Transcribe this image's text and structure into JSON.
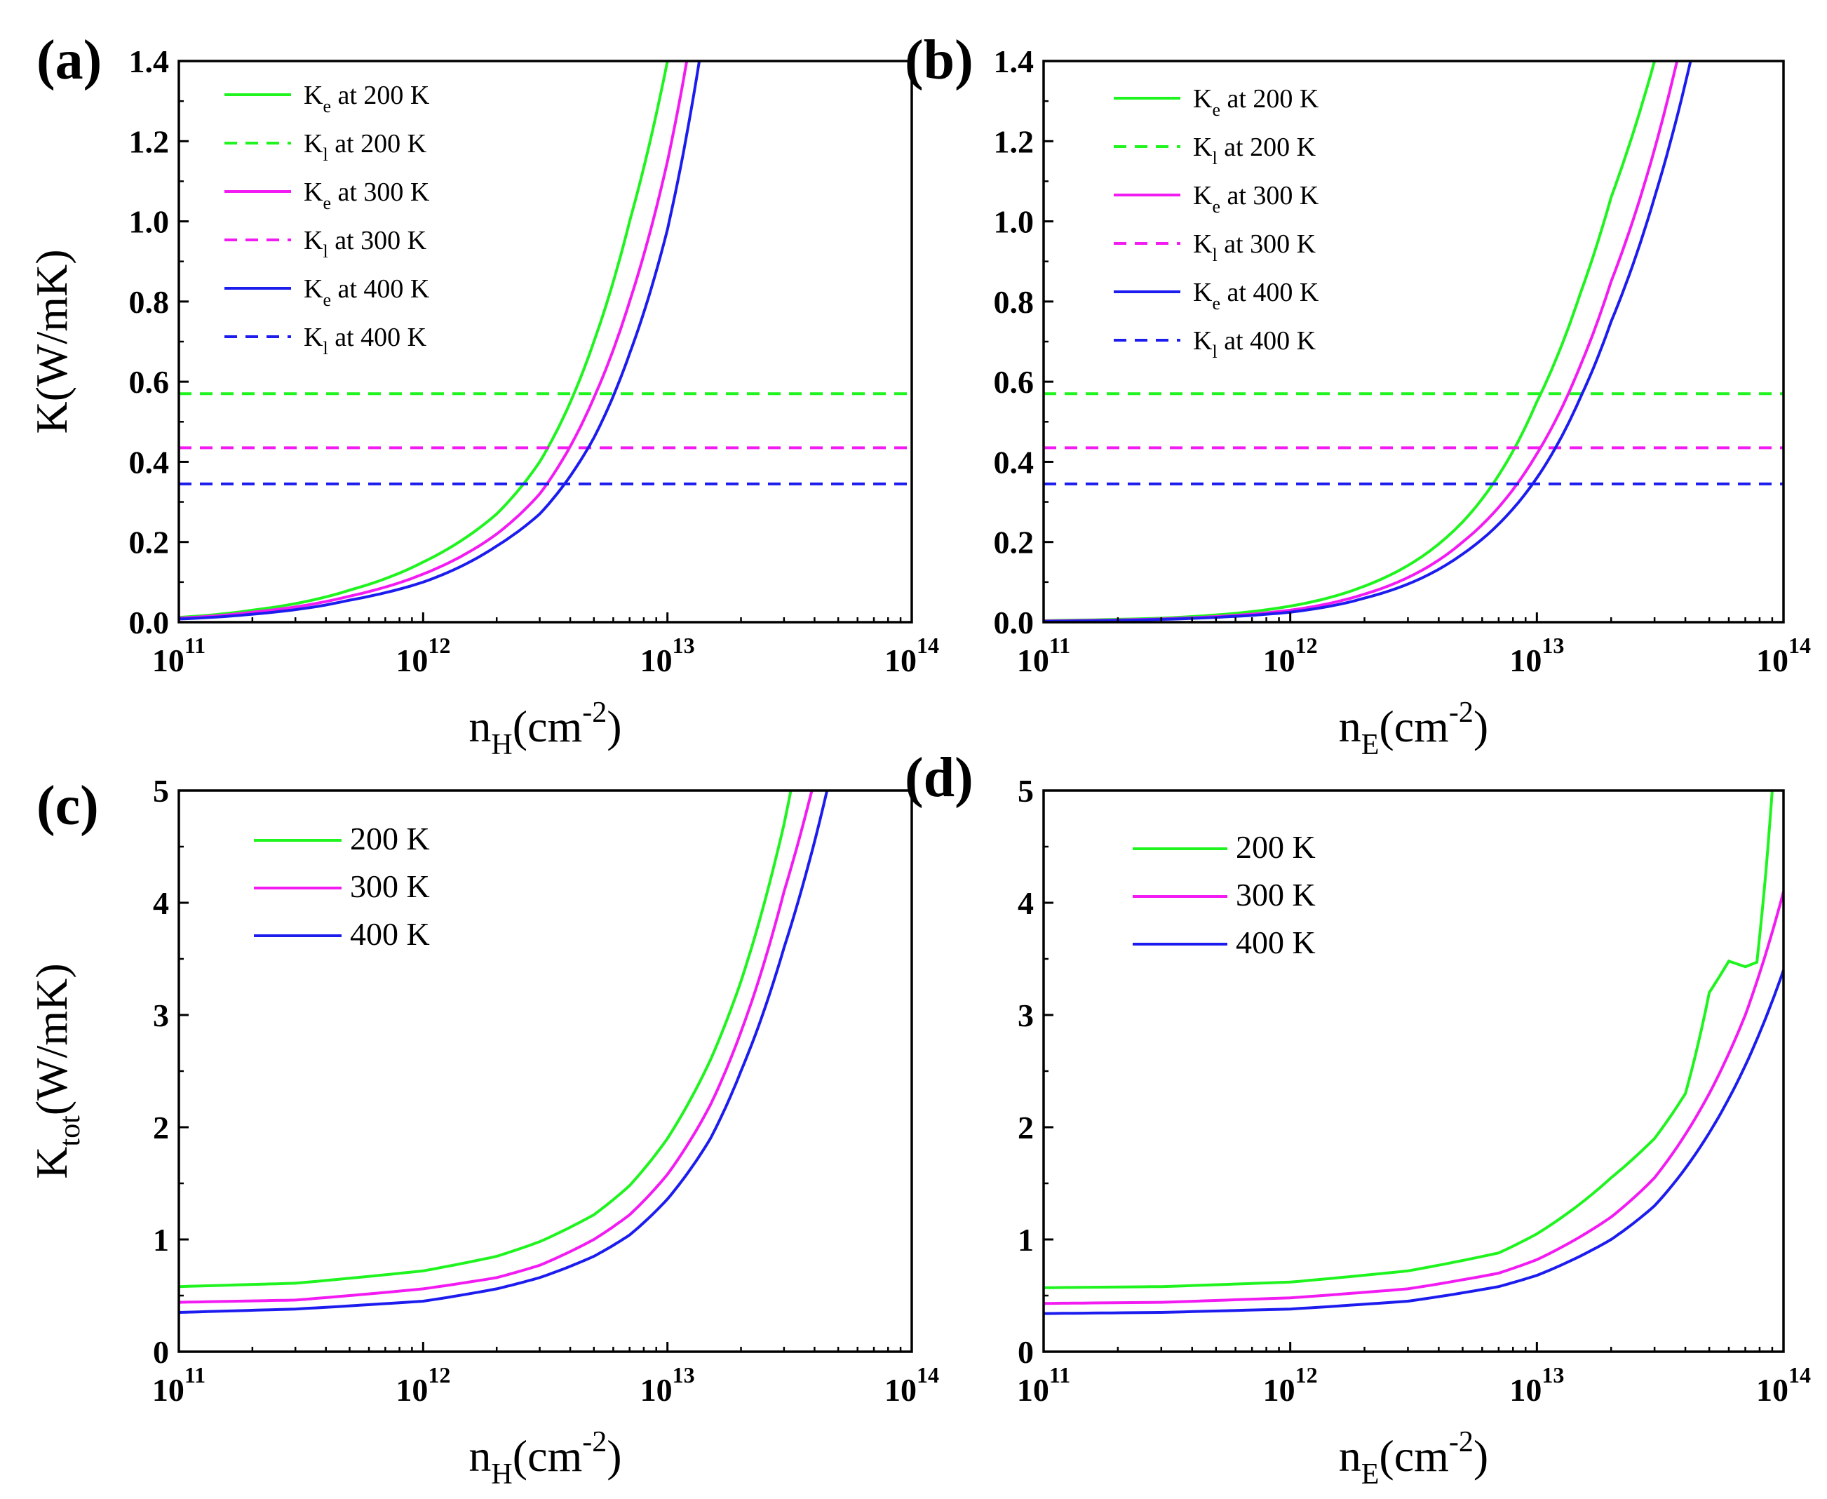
{
  "figure": {
    "panels": [
      "(a)",
      "(b)",
      "(c)",
      "(d)"
    ]
  },
  "colors": {
    "green": "#1ff41f",
    "magenta": "#f21bf2",
    "blue": "#1c1cef",
    "axis": "#000000"
  },
  "chart_data": [
    {
      "id": "a",
      "panel_label": "(a)",
      "type": "line",
      "xscale": "log",
      "xlim": [
        100000000000.0,
        100000000000000.0
      ],
      "ylim": [
        0,
        1.4
      ],
      "x_ticks": [
        {
          "base": "10",
          "exp": "11"
        },
        {
          "base": "10",
          "exp": "12"
        },
        {
          "base": "10",
          "exp": "13"
        },
        {
          "base": "10",
          "exp": "14"
        }
      ],
      "y_ticks": [
        "0.0",
        "0.2",
        "0.4",
        "0.6",
        "0.8",
        "1.0",
        "1.2",
        "1.4"
      ],
      "xlabel": {
        "main": "n",
        "sub": "H",
        "unit": "(cm",
        "sup": "-2",
        "close": ")"
      },
      "ylabel": {
        "main": "K",
        "sub": "",
        "unit": "(W/mK)"
      },
      "legend_position": "top-left",
      "series": [
        {
          "name": "Ke at 200 K",
          "label_main": "K",
          "label_sub": "e",
          "label_rest": " at 200 K",
          "color": "green",
          "dash": false,
          "x": [
            100000000000.0,
            200000000000.0,
            500000000000.0,
            1000000000000.0,
            2000000000000.0,
            3000000000000.0,
            5000000000000.0,
            7000000000000.0,
            10000000000000.0
          ],
          "y": [
            0.012,
            0.03,
            0.08,
            0.15,
            0.27,
            0.4,
            0.7,
            1.0,
            1.4
          ]
        },
        {
          "name": "Kl at 200 K",
          "label_main": "K",
          "label_sub": "l",
          "label_rest": " at 200 K",
          "color": "green",
          "dash": true,
          "x": [
            100000000000.0,
            100000000000000.0
          ],
          "y": [
            0.57,
            0.57
          ]
        },
        {
          "name": "Ke at 300 K",
          "label_main": "K",
          "label_sub": "e",
          "label_rest": " at 300 K",
          "color": "magenta",
          "dash": false,
          "x": [
            100000000000.0,
            200000000000.0,
            500000000000.0,
            1000000000000.0,
            2000000000000.0,
            3000000000000.0,
            5000000000000.0,
            7000000000000.0,
            10000000000000.0,
            12000000000000.0
          ],
          "y": [
            0.01,
            0.025,
            0.065,
            0.12,
            0.22,
            0.32,
            0.56,
            0.8,
            1.15,
            1.4
          ]
        },
        {
          "name": "Kl at 300 K",
          "label_main": "K",
          "label_sub": "l",
          "label_rest": " at 300 K",
          "color": "magenta",
          "dash": true,
          "x": [
            100000000000.0,
            100000000000000.0
          ],
          "y": [
            0.435,
            0.435
          ]
        },
        {
          "name": "Ke at 400 K",
          "label_main": "K",
          "label_sub": "e",
          "label_rest": " at 400 K",
          "color": "blue",
          "dash": false,
          "x": [
            100000000000.0,
            200000000000.0,
            500000000000.0,
            1000000000000.0,
            2000000000000.0,
            3000000000000.0,
            5000000000000.0,
            7000000000000.0,
            10000000000000.0,
            13500000000000.0
          ],
          "y": [
            0.008,
            0.02,
            0.055,
            0.1,
            0.19,
            0.27,
            0.46,
            0.67,
            0.98,
            1.4
          ]
        },
        {
          "name": "Kl at 400 K",
          "label_main": "K",
          "label_sub": "l",
          "label_rest": " at 400 K",
          "color": "blue",
          "dash": true,
          "x": [
            100000000000.0,
            100000000000000.0
          ],
          "y": [
            0.345,
            0.345
          ]
        }
      ]
    },
    {
      "id": "b",
      "panel_label": "(b)",
      "type": "line",
      "xscale": "log",
      "xlim": [
        100000000000.0,
        100000000000000.0
      ],
      "ylim": [
        0,
        1.4
      ],
      "x_ticks": [
        {
          "base": "10",
          "exp": "11"
        },
        {
          "base": "10",
          "exp": "12"
        },
        {
          "base": "10",
          "exp": "13"
        },
        {
          "base": "10",
          "exp": "14"
        }
      ],
      "y_ticks": [
        "0.0",
        "0.2",
        "0.4",
        "0.6",
        "0.8",
        "1.0",
        "1.2",
        "1.4"
      ],
      "xlabel": {
        "main": "n",
        "sub": "E",
        "unit": "(cm",
        "sup": "-2",
        "close": ")"
      },
      "ylabel": null,
      "legend_position": "top-left",
      "series": [
        {
          "name": "Ke at 200 K",
          "label_main": "K",
          "label_sub": "e",
          "label_rest": " at 200 K",
          "color": "green",
          "dash": false,
          "x": [
            100000000000.0,
            300000000000.0,
            1000000000000.0,
            2000000000000.0,
            5000000000000.0,
            10000000000000.0,
            15000000000000.0,
            20000000000000.0,
            30000000000000.0
          ],
          "y": [
            0.004,
            0.01,
            0.04,
            0.09,
            0.25,
            0.55,
            0.82,
            1.06,
            1.4
          ]
        },
        {
          "name": "Kl at 200 K",
          "label_main": "K",
          "label_sub": "l",
          "label_rest": " at 200 K",
          "color": "green",
          "dash": true,
          "x": [
            100000000000.0,
            100000000000000.0
          ],
          "y": [
            0.57,
            0.57
          ]
        },
        {
          "name": "Ke at 300 K",
          "label_main": "K",
          "label_sub": "e",
          "label_rest": " at 300 K",
          "color": "magenta",
          "dash": false,
          "x": [
            100000000000.0,
            300000000000.0,
            1000000000000.0,
            2000000000000.0,
            5000000000000.0,
            10000000000000.0,
            15000000000000.0,
            20000000000000.0,
            30000000000000.0,
            37000000000000.0
          ],
          "y": [
            0.003,
            0.008,
            0.03,
            0.07,
            0.2,
            0.42,
            0.64,
            0.85,
            1.18,
            1.4
          ]
        },
        {
          "name": "Kl at 300 K",
          "label_main": "K",
          "label_sub": "l",
          "label_rest": " at 300 K",
          "color": "magenta",
          "dash": true,
          "x": [
            100000000000.0,
            100000000000000.0
          ],
          "y": [
            0.435,
            0.435
          ]
        },
        {
          "name": "Ke at 400 K",
          "label_main": "K",
          "label_sub": "e",
          "label_rest": " at 400 K",
          "color": "blue",
          "dash": false,
          "x": [
            100000000000.0,
            300000000000.0,
            1000000000000.0,
            2000000000000.0,
            5000000000000.0,
            10000000000000.0,
            15000000000000.0,
            20000000000000.0,
            30000000000000.0,
            42000000000000.0
          ],
          "y": [
            0.002,
            0.007,
            0.025,
            0.06,
            0.17,
            0.36,
            0.56,
            0.75,
            1.06,
            1.4
          ]
        },
        {
          "name": "Kl at 400 K",
          "label_main": "K",
          "label_sub": "l",
          "label_rest": " at 400 K",
          "color": "blue",
          "dash": true,
          "x": [
            100000000000.0,
            100000000000000.0
          ],
          "y": [
            0.345,
            0.345
          ]
        }
      ]
    },
    {
      "id": "c",
      "panel_label": "(c)",
      "type": "line",
      "xscale": "log",
      "xlim": [
        100000000000.0,
        100000000000000.0
      ],
      "ylim": [
        0,
        5
      ],
      "x_ticks": [
        {
          "base": "10",
          "exp": "11"
        },
        {
          "base": "10",
          "exp": "12"
        },
        {
          "base": "10",
          "exp": "13"
        },
        {
          "base": "10",
          "exp": "14"
        }
      ],
      "y_ticks": [
        "0",
        "1",
        "2",
        "3",
        "4",
        "5"
      ],
      "xlabel": {
        "main": "n",
        "sub": "H",
        "unit": "(cm",
        "sup": "-2",
        "close": ")"
      },
      "ylabel": {
        "main": "K",
        "sub": "tot",
        "unit": "(W/mK)"
      },
      "legend_position": "top-left",
      "series": [
        {
          "name": "200 K",
          "label_main": "",
          "label_sub": "",
          "label_rest": "200 K",
          "color": "green",
          "dash": false,
          "x": [
            100000000000.0,
            300000000000.0,
            1000000000000.0,
            2000000000000.0,
            3000000000000.0,
            5000000000000.0,
            7000000000000.0,
            10000000000000.0,
            15000000000000.0,
            20000000000000.0,
            30000000000000.0,
            32000000000000.0
          ],
          "y": [
            0.58,
            0.61,
            0.72,
            0.85,
            0.98,
            1.22,
            1.48,
            1.9,
            2.6,
            3.3,
            4.7,
            5.0
          ]
        },
        {
          "name": "300 K",
          "label_main": "",
          "label_sub": "",
          "label_rest": "300 K",
          "color": "magenta",
          "dash": false,
          "x": [
            100000000000.0,
            300000000000.0,
            1000000000000.0,
            2000000000000.0,
            3000000000000.0,
            5000000000000.0,
            7000000000000.0,
            10000000000000.0,
            15000000000000.0,
            20000000000000.0,
            30000000000000.0,
            39000000000000.0
          ],
          "y": [
            0.44,
            0.46,
            0.56,
            0.66,
            0.77,
            1.0,
            1.22,
            1.58,
            2.2,
            2.85,
            4.1,
            5.0
          ]
        },
        {
          "name": "400 K",
          "label_main": "",
          "label_sub": "",
          "label_rest": "400 K",
          "color": "blue",
          "dash": false,
          "x": [
            100000000000.0,
            300000000000.0,
            1000000000000.0,
            2000000000000.0,
            3000000000000.0,
            5000000000000.0,
            7000000000000.0,
            10000000000000.0,
            15000000000000.0,
            20000000000000.0,
            30000000000000.0,
            45000000000000.0
          ],
          "y": [
            0.35,
            0.38,
            0.45,
            0.56,
            0.66,
            0.85,
            1.04,
            1.36,
            1.9,
            2.5,
            3.6,
            5.0
          ]
        }
      ]
    },
    {
      "id": "d",
      "panel_label": "(d)",
      "type": "line",
      "xscale": "log",
      "xlim": [
        100000000000.0,
        100000000000000.0
      ],
      "ylim": [
        0,
        5
      ],
      "x_ticks": [
        {
          "base": "10",
          "exp": "11"
        },
        {
          "base": "10",
          "exp": "12"
        },
        {
          "base": "10",
          "exp": "13"
        },
        {
          "base": "10",
          "exp": "14"
        }
      ],
      "y_ticks": [
        "0",
        "1",
        "2",
        "3",
        "4",
        "5"
      ],
      "xlabel": {
        "main": "n",
        "sub": "E",
        "unit": "(cm",
        "sup": "-2",
        "close": ")"
      },
      "ylabel": null,
      "legend_position": "top-left",
      "series": [
        {
          "name": "200 K",
          "label_main": "",
          "label_sub": "",
          "label_rest": "200 K",
          "color": "green",
          "dash": false,
          "x": [
            100000000000.0,
            300000000000.0,
            1000000000000.0,
            3000000000000.0,
            7000000000000.0,
            10000000000000.0,
            20000000000000.0,
            30000000000000.0,
            40000000000000.0,
            50000000000000.0,
            60000000000000.0,
            70000000000000.0,
            78000000000000.0,
            85000000000000.0,
            90000000000000.0
          ],
          "y": [
            0.57,
            0.58,
            0.62,
            0.72,
            0.88,
            1.05,
            1.55,
            1.9,
            2.3,
            3.2,
            3.48,
            3.43,
            3.47,
            4.3,
            5.0
          ]
        },
        {
          "name": "300 K",
          "label_main": "",
          "label_sub": "",
          "label_rest": "300 K",
          "color": "magenta",
          "dash": false,
          "x": [
            100000000000.0,
            300000000000.0,
            1000000000000.0,
            3000000000000.0,
            7000000000000.0,
            10000000000000.0,
            20000000000000.0,
            30000000000000.0,
            50000000000000.0,
            70000000000000.0,
            100000000000000.0
          ],
          "y": [
            0.43,
            0.44,
            0.48,
            0.56,
            0.7,
            0.82,
            1.2,
            1.55,
            2.3,
            3.0,
            4.1
          ]
        },
        {
          "name": "400 K",
          "label_main": "",
          "label_sub": "",
          "label_rest": "400 K",
          "color": "blue",
          "dash": false,
          "x": [
            100000000000.0,
            300000000000.0,
            1000000000000.0,
            3000000000000.0,
            7000000000000.0,
            10000000000000.0,
            20000000000000.0,
            30000000000000.0,
            50000000000000.0,
            70000000000000.0,
            100000000000000.0
          ],
          "y": [
            0.34,
            0.35,
            0.38,
            0.45,
            0.58,
            0.68,
            1.0,
            1.3,
            1.95,
            2.55,
            3.4
          ]
        }
      ]
    }
  ]
}
